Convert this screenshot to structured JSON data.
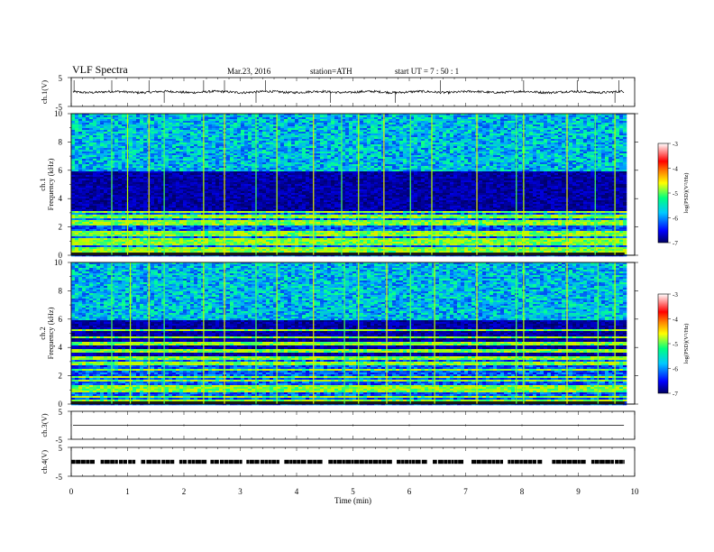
{
  "header": {
    "title": "VLF  Spectra",
    "date": "Mar.23, 2016",
    "station": "station=ATH",
    "start_ut": "start  UT  =   7  : 50 : 1"
  },
  "chart_data": [
    {
      "type": "line",
      "name": "ch1-waveform",
      "ylabel": "ch.1(V)",
      "yticks": [
        "5",
        "-5"
      ],
      "ylim": [
        -5,
        5
      ],
      "level": 0.0,
      "noise_amplitude": 0.4,
      "spike_times_min": [
        0.05,
        0.72,
        1.38,
        1.65,
        2.35,
        2.72,
        3.28,
        3.45,
        4.6,
        5.75,
        6.55,
        8.03,
        8.98,
        9.65,
        9.72
      ]
    },
    {
      "type": "heatmap",
      "name": "ch1-spectrogram",
      "ylabel": "ch.1\nFrequency  (kHz)",
      "yticks": [
        "0",
        "2",
        "4",
        "6",
        "8",
        "10"
      ],
      "ylim": [
        0,
        10
      ],
      "colorbar": {
        "label": "log(PSD)(V²/Hz)",
        "ticks": [
          "-3",
          "-4",
          "-5",
          "-6",
          "-7"
        ],
        "range": [
          -7,
          -3
        ]
      },
      "bands_khz": [
        0.2,
        0.4,
        0.6,
        0.8,
        1.0,
        1.2,
        1.5,
        1.7,
        2.2,
        2.4,
        2.8,
        3.1
      ],
      "upper_band_khz": [
        6.0,
        10.0
      ],
      "sferic_times_min": [
        0.72,
        1.0,
        1.38,
        1.65,
        2.35,
        2.72,
        3.28,
        3.65,
        4.3,
        4.8,
        5.1,
        5.55,
        6.02,
        6.4,
        7.2,
        7.9,
        8.03,
        8.8,
        9.3,
        9.65
      ]
    },
    {
      "type": "heatmap",
      "name": "ch2-spectrogram",
      "ylabel": "ch.2\nFrequency  (kHz)",
      "yticks": [
        "0",
        "2",
        "4",
        "6",
        "8",
        "10"
      ],
      "ylim": [
        0,
        10
      ],
      "colorbar": {
        "label": "log(PSD)(V²/Hz)",
        "ticks": [
          "-3",
          "-4",
          "-5",
          "-6",
          "-7"
        ],
        "range": [
          -7,
          -3
        ]
      },
      "bands_khz": [
        0.3,
        0.6,
        1.0,
        1.3,
        1.7,
        2.0,
        2.5,
        2.9,
        3.3,
        3.8,
        4.3,
        4.8,
        5.3
      ],
      "upper_band_khz": [
        6.0,
        10.0
      ],
      "sferic_times_min": [
        0.72,
        1.05,
        1.38,
        1.65,
        2.35,
        2.72,
        3.28,
        3.65,
        4.3,
        4.85,
        5.1,
        5.6,
        6.02,
        6.45,
        7.2,
        7.9,
        8.03,
        8.8,
        9.35,
        9.65
      ]
    },
    {
      "type": "line",
      "name": "ch3-waveform",
      "ylabel": "ch.3(V)",
      "yticks": [
        "5",
        "-5"
      ],
      "ylim": [
        -5,
        5
      ],
      "level": 0.0,
      "noise_amplitude": 0.0,
      "spike_times_min": []
    },
    {
      "type": "line",
      "name": "ch4-waveform",
      "ylabel": "ch.4(V)",
      "yticks": [
        "5",
        "-5"
      ],
      "ylim": [
        -5,
        5
      ],
      "level": 0.0,
      "pulse_train": true,
      "gap_times_min": [
        0.45,
        1.15,
        1.85,
        2.4,
        3.05,
        3.7,
        4.5,
        5.7,
        6.3,
        7.0,
        7.7,
        8.4,
        9.1
      ]
    }
  ],
  "xaxis": {
    "label": "Time  (min)",
    "ticks": [
      "0",
      "1",
      "2",
      "3",
      "4",
      "5",
      "6",
      "7",
      "8",
      "9",
      "10"
    ],
    "xlim": [
      0,
      10
    ],
    "data_end_min": 9.82
  }
}
